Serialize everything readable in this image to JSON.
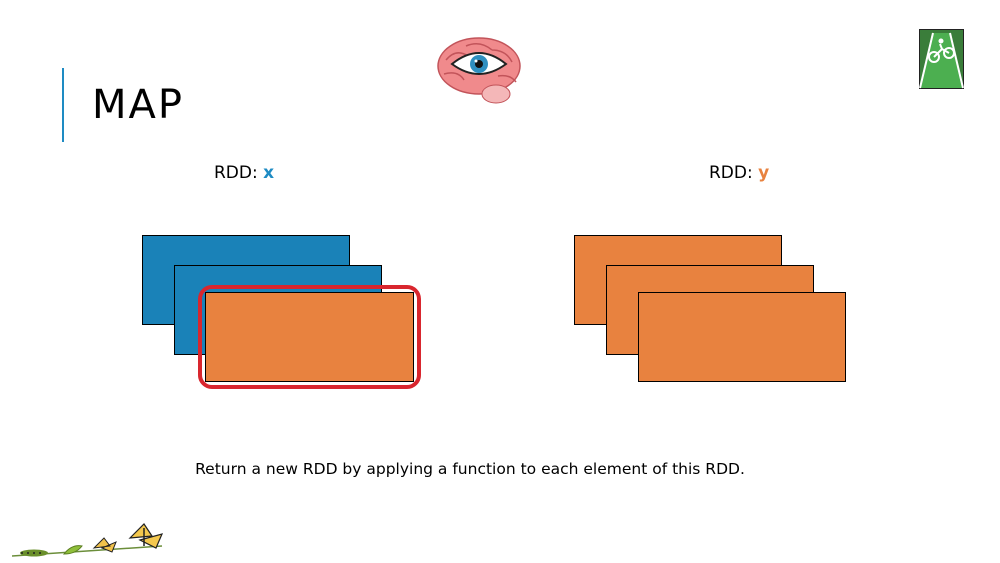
{
  "slide": {
    "title": "MAP",
    "caption": "Return a new RDD by applying a function to each element of this RDD."
  },
  "rdd_x": {
    "prefix": "RDD:",
    "name": "x",
    "name_color": "#1e8bc3"
  },
  "rdd_y": {
    "prefix": "RDD:",
    "name": "y",
    "name_color": "#e8823f"
  },
  "colors": {
    "blue": "#1a82b8",
    "orange": "#e8823f",
    "highlight": "#d9262e"
  }
}
